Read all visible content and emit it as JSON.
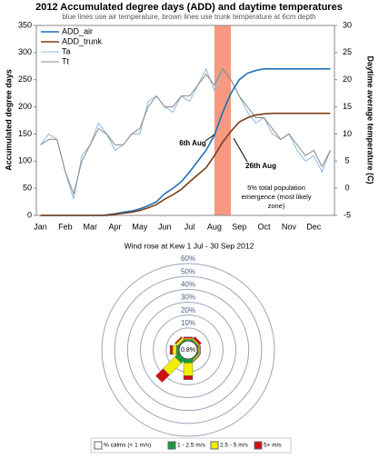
{
  "chart_data": [
    {
      "type": "line",
      "title": "2012 Accumulated degree days (ADD) and daytime temperatures",
      "subtitle": "blue lines use air temperature, brown lines use trunk temperature at 6cm depth",
      "ylabel": "Accumulated degree days",
      "y2label": "Daytime average temperature (C)",
      "categories": [
        "Jan",
        null,
        null,
        "Feb",
        null,
        null,
        "Mar",
        null,
        null,
        "Apr",
        null,
        null,
        "May",
        null,
        null,
        "Jun",
        null,
        null,
        "Jul",
        null,
        null,
        "Aug",
        null,
        null,
        "Sep",
        null,
        null,
        "Oct",
        null,
        null,
        "Nov",
        null,
        null,
        "Dec",
        null,
        null
      ],
      "series": [
        {
          "name": "ADD_air",
          "color": "#1f6fb5",
          "values": [
            0,
            0,
            0,
            0,
            0,
            0,
            0,
            0,
            1,
            3,
            6,
            8,
            12,
            18,
            25,
            40,
            50,
            62,
            80,
            100,
            120,
            148,
            190,
            225,
            250,
            262,
            267,
            270,
            270,
            270,
            270,
            270,
            270,
            270,
            270,
            270
          ]
        },
        {
          "name": "ADD_trunk",
          "color": "#7b3f16",
          "values": [
            0,
            0,
            0,
            0,
            0,
            0,
            0,
            0,
            0,
            2,
            4,
            6,
            9,
            14,
            20,
            30,
            38,
            48,
            62,
            75,
            88,
            110,
            135,
            155,
            172,
            180,
            185,
            187,
            188,
            188,
            188,
            188,
            188,
            188,
            188,
            188
          ]
        },
        {
          "name": "Ta",
          "color": "#8fb8de",
          "axis": "y2",
          "values": [
            8,
            10,
            9,
            3,
            -2,
            6,
            8,
            12,
            10,
            7,
            8,
            10,
            10,
            16,
            17,
            15,
            14,
            17,
            16,
            19,
            22,
            18,
            22,
            20,
            17,
            14,
            12,
            13,
            10,
            9,
            10,
            7,
            5,
            6,
            3,
            7
          ]
        },
        {
          "name": "Tt",
          "color": "#888888",
          "axis": "y2",
          "values": [
            8,
            9,
            9,
            3,
            -1,
            5,
            8,
            11,
            10,
            8,
            8,
            10,
            11,
            15,
            17,
            15,
            15,
            17,
            17,
            19,
            21,
            19,
            22,
            20,
            17,
            15,
            13,
            13,
            11,
            9,
            10,
            8,
            6,
            7,
            4,
            7
          ]
        }
      ],
      "ylim": [
        0,
        350
      ],
      "yticks": [
        0,
        50,
        100,
        150,
        200,
        250,
        300,
        350
      ],
      "y2lim": [
        -5,
        30
      ],
      "y2ticks": [
        -5,
        0,
        5,
        10,
        15,
        20,
        25,
        30
      ],
      "legend": "upper left",
      "annotations": [
        "6th Aug",
        "26th Aug",
        "5% total population emergence (most likely zone)"
      ]
    },
    {
      "type": "wind_rose",
      "title": "Wind rose at Kew 1 Jul - 30 Sep 2012",
      "directions": [
        null,
        null,
        null,
        null,
        null,
        null,
        null,
        null
      ],
      "calm": {
        "name": "% calms (< 1 m/s)",
        "values": [
          0.8
        ],
        "value_labels": [
          "0.8%"
        ]
      },
      "series": [
        {
          "name": "1 - 2.5 m/s",
          "color": "#1a9a3a",
          "values": [
            1,
            1,
            1,
            1,
            3,
            4,
            2,
            1
          ]
        },
        {
          "name": "2.5 - 5 m/s",
          "color": "#f2ee00",
          "values": [
            1,
            1,
            1,
            1,
            10,
            13,
            3,
            2
          ]
        },
        {
          "name": "5+ m/s",
          "color": "#d01010",
          "values": [
            1,
            2,
            0.5,
            0.5,
            3,
            8,
            2,
            1
          ]
        }
      ],
      "rlim": [
        0,
        60
      ],
      "rticks": [
        {
          "value": 10,
          "label": "10%"
        },
        {
          "value": 20,
          "label": "20%"
        },
        {
          "value": 30,
          "label": "30%"
        },
        {
          "value": 40,
          "label": "40%"
        },
        {
          "value": 50,
          "label": "50%"
        },
        {
          "value": 60,
          "label": "60%"
        }
      ]
    }
  ]
}
